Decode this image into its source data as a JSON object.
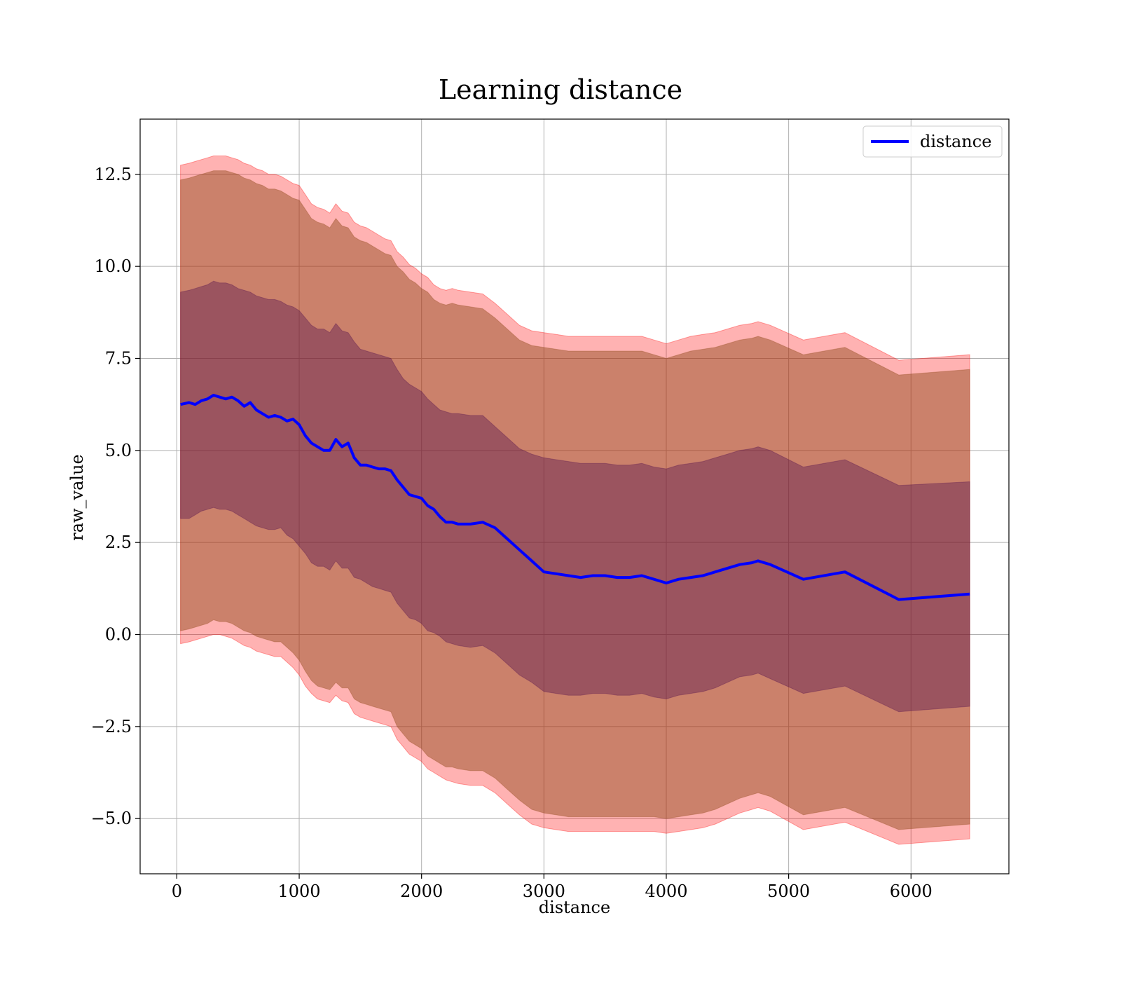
{
  "chart_data": {
    "type": "area",
    "title": "Learning distance",
    "xlabel": "distance",
    "ylabel": "raw_value",
    "xlim": [
      -300,
      6800
    ],
    "ylim": [
      -6.5,
      14
    ],
    "xticks": [
      0,
      1000,
      2000,
      3000,
      4000,
      5000,
      6000
    ],
    "xtick_labels": [
      "0",
      "1000",
      "2000",
      "3000",
      "4000",
      "5000",
      "6000"
    ],
    "yticks": [
      -5.0,
      -2.5,
      0.0,
      2.5,
      5.0,
      7.5,
      10.0,
      12.5
    ],
    "ytick_labels": [
      "−5.0",
      "−2.5",
      "0.0",
      "2.5",
      "5.0",
      "7.5",
      "10.0",
      "12.5"
    ],
    "grid": true,
    "legend": {
      "placement": "top-right",
      "entries": [
        "distance"
      ]
    },
    "colors": {
      "line": "#0000ff",
      "band_outer": "#ff0000",
      "band_middle": "#8b4513",
      "band_inner": "#4b0b4b"
    },
    "series": [
      {
        "name": "distance",
        "x": [
          30,
          100,
          150,
          200,
          250,
          300,
          350,
          400,
          450,
          500,
          550,
          600,
          650,
          700,
          750,
          800,
          850,
          900,
          950,
          1000,
          1050,
          1100,
          1150,
          1200,
          1250,
          1300,
          1350,
          1400,
          1450,
          1500,
          1550,
          1600,
          1650,
          1700,
          1750,
          1800,
          1850,
          1900,
          1950,
          2000,
          2050,
          2100,
          2150,
          2200,
          2250,
          2300,
          2400,
          2500,
          2600,
          2700,
          2800,
          2900,
          3000,
          3100,
          3200,
          3300,
          3400,
          3500,
          3600,
          3700,
          3800,
          3900,
          4000,
          4100,
          4200,
          4300,
          4400,
          4500,
          4600,
          4700,
          4750,
          4850,
          5120,
          5460,
          5900,
          6480
        ],
        "mean": [
          6.25,
          6.3,
          6.25,
          6.35,
          6.4,
          6.5,
          6.45,
          6.4,
          6.45,
          6.35,
          6.2,
          6.3,
          6.1,
          6.0,
          5.9,
          5.95,
          5.9,
          5.8,
          5.85,
          5.7,
          5.4,
          5.2,
          5.1,
          5.0,
          5.0,
          5.3,
          5.1,
          5.2,
          4.8,
          4.6,
          4.6,
          4.55,
          4.5,
          4.5,
          4.45,
          4.2,
          4.0,
          3.8,
          3.75,
          3.7,
          3.5,
          3.4,
          3.2,
          3.05,
          3.05,
          3.0,
          3.0,
          3.05,
          2.9,
          2.6,
          2.3,
          2.0,
          1.7,
          1.65,
          1.6,
          1.55,
          1.6,
          1.6,
          1.55,
          1.55,
          1.6,
          1.5,
          1.4,
          1.5,
          1.55,
          1.6,
          1.7,
          1.8,
          1.9,
          1.95,
          2.0,
          1.9,
          1.5,
          1.7,
          0.95,
          1.1
        ],
        "std1_lower": [
          3.15,
          3.15,
          3.25,
          3.35,
          3.4,
          3.45,
          3.4,
          3.4,
          3.35,
          3.25,
          3.15,
          3.05,
          2.95,
          2.9,
          2.85,
          2.85,
          2.9,
          2.7,
          2.6,
          2.4,
          2.2,
          1.95,
          1.85,
          1.85,
          1.75,
          2.0,
          1.8,
          1.8,
          1.55,
          1.5,
          1.4,
          1.3,
          1.25,
          1.2,
          1.15,
          0.85,
          0.65,
          0.45,
          0.4,
          0.3,
          0.1,
          0.05,
          -0.05,
          -0.2,
          -0.25,
          -0.3,
          -0.35,
          -0.3,
          -0.5,
          -0.8,
          -1.1,
          -1.3,
          -1.55,
          -1.6,
          -1.65,
          -1.65,
          -1.6,
          -1.6,
          -1.65,
          -1.65,
          -1.6,
          -1.7,
          -1.75,
          -1.65,
          -1.6,
          -1.55,
          -1.45,
          -1.3,
          -1.15,
          -1.1,
          -1.05,
          -1.2,
          -1.6,
          -1.4,
          -2.1,
          -1.95
        ],
        "std1_upper": [
          9.3,
          9.35,
          9.4,
          9.45,
          9.5,
          9.6,
          9.55,
          9.55,
          9.5,
          9.4,
          9.35,
          9.3,
          9.2,
          9.15,
          9.1,
          9.1,
          9.05,
          8.95,
          8.9,
          8.8,
          8.6,
          8.4,
          8.3,
          8.3,
          8.2,
          8.45,
          8.25,
          8.2,
          7.95,
          7.75,
          7.7,
          7.65,
          7.6,
          7.55,
          7.5,
          7.2,
          6.95,
          6.8,
          6.7,
          6.6,
          6.4,
          6.25,
          6.1,
          6.05,
          6.0,
          6.0,
          5.95,
          5.95,
          5.65,
          5.35,
          5.05,
          4.9,
          4.8,
          4.75,
          4.7,
          4.65,
          4.65,
          4.65,
          4.6,
          4.6,
          4.65,
          4.55,
          4.5,
          4.6,
          4.65,
          4.7,
          4.8,
          4.9,
          5.0,
          5.05,
          5.1,
          5.0,
          4.55,
          4.75,
          4.05,
          4.15
        ],
        "std2_lower": [
          0.1,
          0.15,
          0.2,
          0.25,
          0.3,
          0.4,
          0.35,
          0.35,
          0.3,
          0.2,
          0.1,
          0.05,
          -0.05,
          -0.1,
          -0.15,
          -0.2,
          -0.2,
          -0.35,
          -0.5,
          -0.7,
          -1.0,
          -1.25,
          -1.4,
          -1.45,
          -1.5,
          -1.3,
          -1.45,
          -1.45,
          -1.75,
          -1.85,
          -1.9,
          -1.95,
          -2.0,
          -2.05,
          -2.1,
          -2.5,
          -2.7,
          -2.9,
          -3.0,
          -3.1,
          -3.3,
          -3.4,
          -3.5,
          -3.6,
          -3.6,
          -3.65,
          -3.7,
          -3.7,
          -3.9,
          -4.2,
          -4.5,
          -4.75,
          -4.85,
          -4.9,
          -4.95,
          -4.95,
          -4.95,
          -4.95,
          -4.95,
          -4.95,
          -4.95,
          -4.95,
          -5.0,
          -4.95,
          -4.9,
          -4.85,
          -4.75,
          -4.6,
          -4.45,
          -4.35,
          -4.3,
          -4.4,
          -4.9,
          -4.7,
          -5.3,
          -5.15
        ],
        "std2_upper": [
          12.35,
          12.4,
          12.45,
          12.5,
          12.55,
          12.6,
          12.6,
          12.6,
          12.55,
          12.5,
          12.4,
          12.35,
          12.25,
          12.2,
          12.1,
          12.1,
          12.05,
          11.95,
          11.85,
          11.8,
          11.55,
          11.3,
          11.2,
          11.15,
          11.05,
          11.3,
          11.1,
          11.05,
          10.8,
          10.7,
          10.65,
          10.55,
          10.45,
          10.35,
          10.3,
          10.0,
          9.85,
          9.65,
          9.55,
          9.4,
          9.3,
          9.1,
          9.0,
          8.95,
          9.0,
          8.95,
          8.9,
          8.85,
          8.6,
          8.3,
          8.0,
          7.85,
          7.8,
          7.75,
          7.7,
          7.7,
          7.7,
          7.7,
          7.7,
          7.7,
          7.7,
          7.6,
          7.5,
          7.6,
          7.7,
          7.75,
          7.8,
          7.9,
          8.0,
          8.05,
          8.1,
          8.0,
          7.6,
          7.8,
          7.05,
          7.2
        ],
        "std3_lower": [
          -0.25,
          -0.2,
          -0.15,
          -0.1,
          -0.05,
          0.0,
          0.0,
          -0.05,
          -0.1,
          -0.2,
          -0.3,
          -0.35,
          -0.45,
          -0.5,
          -0.55,
          -0.6,
          -0.6,
          -0.75,
          -0.9,
          -1.1,
          -1.4,
          -1.6,
          -1.75,
          -1.8,
          -1.85,
          -1.65,
          -1.8,
          -1.85,
          -2.15,
          -2.25,
          -2.3,
          -2.35,
          -2.4,
          -2.45,
          -2.5,
          -2.85,
          -3.05,
          -3.25,
          -3.35,
          -3.45,
          -3.65,
          -3.75,
          -3.85,
          -3.95,
          -4.0,
          -4.05,
          -4.1,
          -4.1,
          -4.3,
          -4.6,
          -4.9,
          -5.15,
          -5.25,
          -5.3,
          -5.35,
          -5.35,
          -5.35,
          -5.35,
          -5.35,
          -5.35,
          -5.35,
          -5.35,
          -5.4,
          -5.35,
          -5.3,
          -5.25,
          -5.15,
          -5.0,
          -4.85,
          -4.75,
          -4.7,
          -4.8,
          -5.3,
          -5.1,
          -5.7,
          -5.55
        ],
        "std3_upper": [
          12.75,
          12.8,
          12.85,
          12.9,
          12.95,
          13.0,
          13.0,
          13.0,
          12.95,
          12.9,
          12.8,
          12.75,
          12.65,
          12.6,
          12.5,
          12.5,
          12.45,
          12.35,
          12.25,
          12.2,
          11.95,
          11.7,
          11.6,
          11.55,
          11.45,
          11.7,
          11.5,
          11.45,
          11.2,
          11.1,
          11.05,
          10.95,
          10.85,
          10.75,
          10.7,
          10.4,
          10.25,
          10.05,
          9.95,
          9.8,
          9.7,
          9.5,
          9.4,
          9.35,
          9.4,
          9.35,
          9.3,
          9.25,
          9.0,
          8.7,
          8.4,
          8.25,
          8.2,
          8.15,
          8.1,
          8.1,
          8.1,
          8.1,
          8.1,
          8.1,
          8.1,
          8.0,
          7.9,
          8.0,
          8.1,
          8.15,
          8.2,
          8.3,
          8.4,
          8.45,
          8.5,
          8.4,
          8.0,
          8.2,
          7.45,
          7.6
        ]
      }
    ]
  }
}
